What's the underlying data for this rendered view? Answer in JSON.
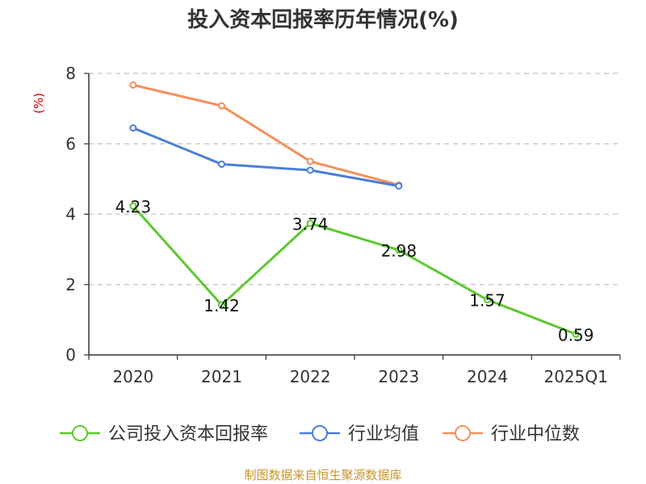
{
  "chart_data": {
    "type": "line",
    "title": "投入资本回报率历年情况(%)",
    "ylabel": "(%)",
    "xlabel": "",
    "ylim": [
      0,
      8
    ],
    "yticks": [
      0,
      2,
      4,
      6,
      8
    ],
    "grid": true,
    "legend_position": "bottom",
    "categories": [
      "2020",
      "2021",
      "2022",
      "2023",
      "2024",
      "2025Q1"
    ],
    "series": [
      {
        "name": "公司投入资本回报率",
        "color": "#5cc830",
        "values": [
          4.23,
          1.42,
          3.74,
          2.98,
          1.57,
          0.59
        ],
        "labels": [
          "4.23",
          "1.42",
          "3.74",
          "2.98",
          "1.57",
          "0.59"
        ]
      },
      {
        "name": "行业均值",
        "color": "#4a7fd9",
        "values": [
          6.45,
          5.42,
          5.25,
          4.8,
          null,
          null
        ]
      },
      {
        "name": "行业中位数",
        "color": "#f4905a",
        "values": [
          7.67,
          7.08,
          5.5,
          4.83,
          null,
          null
        ]
      }
    ]
  },
  "footer": {
    "source": "制图数据来自恒生聚源数据库"
  },
  "colors": {
    "ylabel": "#cc0000",
    "grid": "#cccccc",
    "axis": "#333333",
    "source": "#c8962a"
  }
}
